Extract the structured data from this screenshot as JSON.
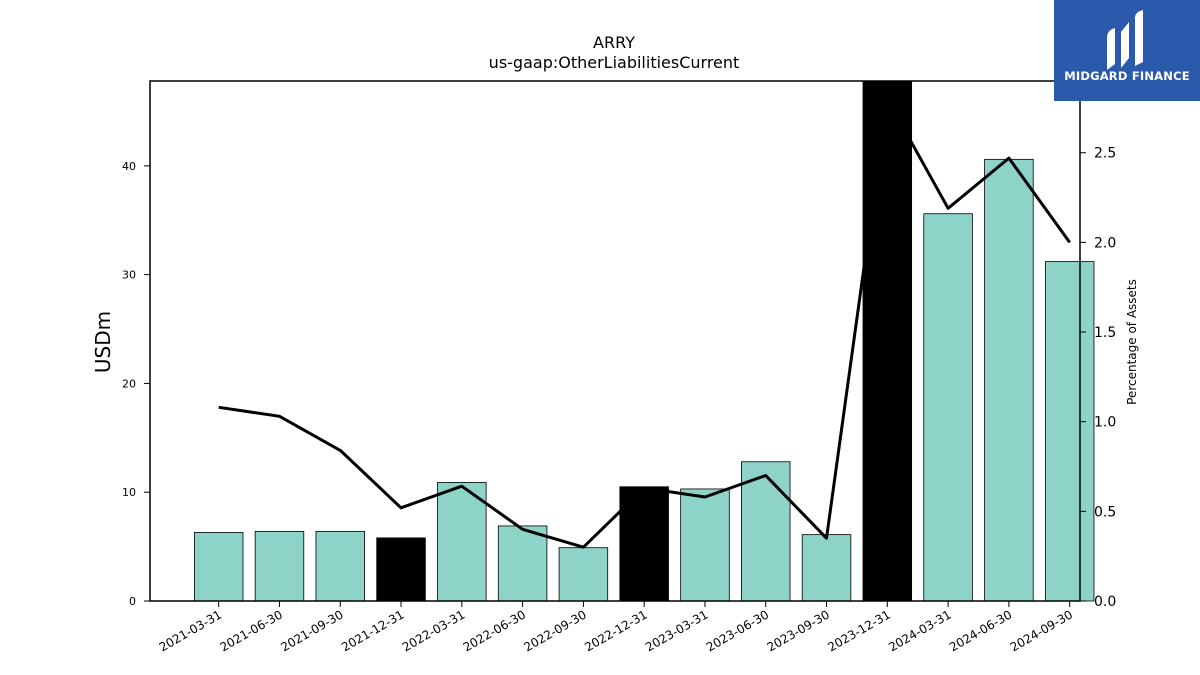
{
  "brand": {
    "name": "MIDGARD FINANCE",
    "bg_color": "#2b5aad",
    "icon": "midgard-m-logo-icon"
  },
  "chart_data": {
    "type": "bar",
    "title": "ARRY",
    "subtitle": "us-gaap:OtherLiabilitiesCurrent",
    "ylabel": "USDm",
    "y2label": "Percentage of Assets",
    "categories": [
      "2021-03-31",
      "2021-06-30",
      "2021-09-30",
      "2021-12-31",
      "2022-03-31",
      "2022-06-30",
      "2022-09-30",
      "2022-12-31",
      "2023-03-31",
      "2023-06-30",
      "2023-09-30",
      "2023-12-31",
      "2024-03-31",
      "2024-06-30",
      "2024-09-30"
    ],
    "series": [
      {
        "kind": "bar",
        "values": [
          6.3,
          6.4,
          6.4,
          5.8,
          10.9,
          6.9,
          4.9,
          10.5,
          10.3,
          12.8,
          6.1,
          48.0,
          35.6,
          40.6,
          31.2
        ],
        "colors": [
          "#8dd3c7",
          "#8dd3c7",
          "#8dd3c7",
          "#000000",
          "#8dd3c7",
          "#8dd3c7",
          "#8dd3c7",
          "#000000",
          "#8dd3c7",
          "#8dd3c7",
          "#8dd3c7",
          "#000000",
          "#8dd3c7",
          "#8dd3c7",
          "#8dd3c7"
        ]
      },
      {
        "kind": "line",
        "axis": "right",
        "values": [
          1.08,
          1.03,
          0.84,
          0.52,
          0.64,
          0.4,
          0.3,
          0.63,
          0.58,
          0.7,
          0.35,
          2.8,
          2.19,
          2.47,
          2.0
        ],
        "color": "#000000"
      }
    ],
    "ylim": [
      0,
      47.8
    ],
    "yticks": [
      0,
      10,
      20,
      30,
      40
    ],
    "y2lim": [
      0,
      2.9
    ],
    "y2ticks": [
      "0.0",
      "0.5",
      "1.0",
      "1.5",
      "2.0",
      "2.5"
    ],
    "grid": false
  }
}
